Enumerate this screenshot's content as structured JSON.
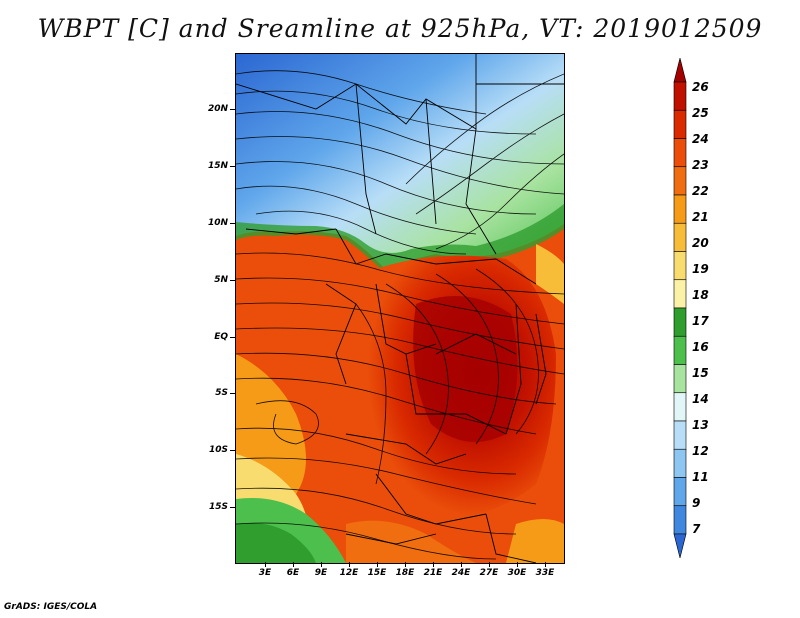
{
  "title": "WBPT [C] and Sreamline at 925hPa, VT: 2019012509",
  "footer": "GrADS: IGES/COLA",
  "map": {
    "lat_labels": [
      "20N",
      "15N",
      "10N",
      "5N",
      "EQ",
      "5S",
      "10S",
      "15S"
    ],
    "lon_labels": [
      "3E",
      "6E",
      "9E",
      "12E",
      "15E",
      "18E",
      "21E",
      "24E",
      "27E",
      "30E",
      "33E"
    ]
  },
  "colorbar": {
    "levels": [
      "26",
      "25",
      "24",
      "23",
      "22",
      "21",
      "20",
      "19",
      "18",
      "17",
      "16",
      "15",
      "14",
      "13",
      "12",
      "11",
      "9",
      "7"
    ],
    "colors": [
      "#a50000",
      "#c01000",
      "#d92a00",
      "#ea4e0a",
      "#f06e10",
      "#f59b18",
      "#f7bd38",
      "#f9dc70",
      "#fbf2a8",
      "#2f9e2f",
      "#4cbf4c",
      "#a8e3a0",
      "#e2f5f7",
      "#b8def7",
      "#8ec6f2",
      "#5fa6eb",
      "#3f87df",
      "#2b67d2"
    ]
  }
}
